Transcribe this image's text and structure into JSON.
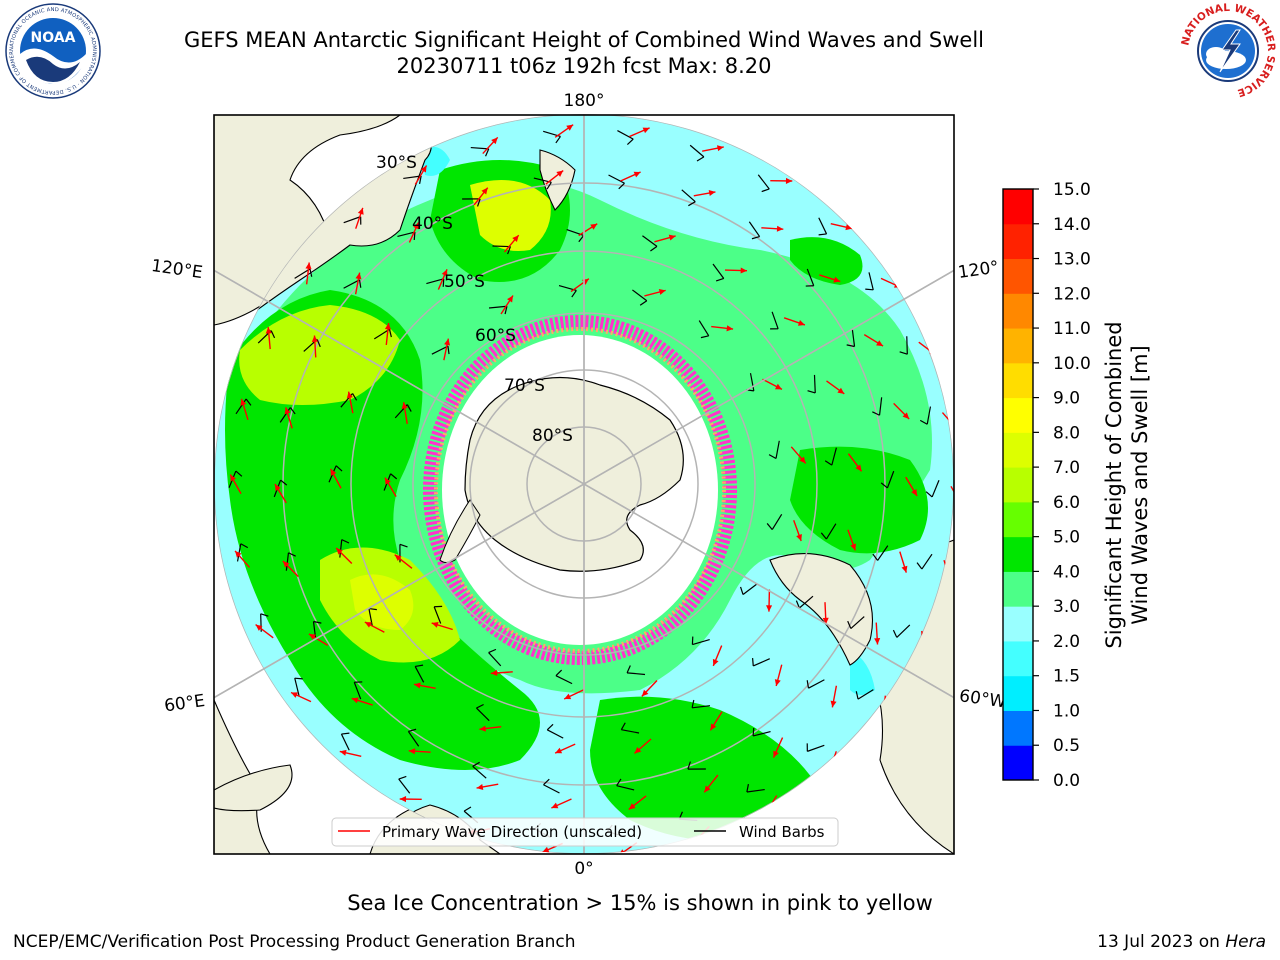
{
  "title": {
    "line1": "GEFS MEAN Antarctic Significant Height of Combined Wind Waves and Swell",
    "line2": "20230711 t06z 192h fcst   Max: 8.20"
  },
  "logos": {
    "noaa_text": "NOAA",
    "noaa_ring_text": "NATIONAL OCEANIC AND ATMOSPHERIC ADMINISTRATION · U.S. DEPARTMENT OF COMMERCE",
    "nws_ring_text": "NATIONAL WEATHER SERVICE"
  },
  "map": {
    "projection": "south-polar-stereographic",
    "lon_labels": [
      "180°",
      "120°E",
      "120°",
      "60°E",
      "60°W",
      "0°"
    ],
    "lat_labels": [
      "30°S",
      "40°S",
      "50°S",
      "60°S",
      "70°S",
      "80°S"
    ]
  },
  "legend": {
    "primary": "Primary Wave Direction (unscaled)",
    "barbs": "Wind Barbs"
  },
  "colorbar": {
    "label_line1": "Significant Height of Combined",
    "label_line2": "Wind Waves and Swell [m]",
    "ticks": [
      "0.0",
      "0.5",
      "1.0",
      "1.5",
      "2.0",
      "3.0",
      "4.0",
      "5.0",
      "6.0",
      "7.0",
      "8.0",
      "9.0",
      "10.0",
      "11.0",
      "12.0",
      "13.0",
      "14.0",
      "15.0"
    ],
    "colors": [
      "#0000ff",
      "#0077ff",
      "#00eeff",
      "#44ffff",
      "#99ffff",
      "#4cff88",
      "#00e600",
      "#66ff00",
      "#b8ff00",
      "#ddff00",
      "#ffff00",
      "#ffdd00",
      "#ffb300",
      "#ff8800",
      "#ff5500",
      "#ff2200",
      "#ff0000"
    ]
  },
  "colors": {
    "land": "#efefdc",
    "grid": "#b4b4b4",
    "wave_arrow": "#ff0000",
    "wind_barb": "#000000",
    "sea_ice": "#ff33cc"
  },
  "footer": {
    "caption": "Sea Ice Concentration > 15% is shown in pink to yellow",
    "left": "NCEP/EMC/Verification Post Processing Product Generation Branch",
    "right_prefix": "13 Jul 2023 on ",
    "right_italic": "Hera"
  }
}
